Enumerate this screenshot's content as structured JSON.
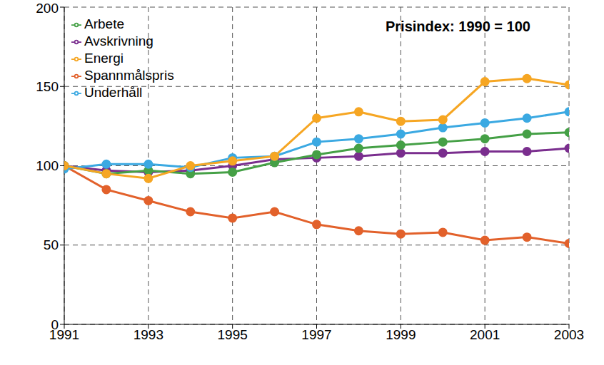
{
  "chart_data": {
    "type": "line",
    "title": "Prisindex: 1990 = 100",
    "x": [
      1991,
      1992,
      1993,
      1994,
      1995,
      1996,
      1997,
      1998,
      1999,
      2000,
      2001,
      2002,
      2003
    ],
    "series": [
      {
        "name": "Spannmålspris",
        "color": "#e2612b",
        "values": [
          100,
          85,
          78,
          71,
          67,
          71,
          63,
          59,
          57,
          58,
          53,
          55,
          51
        ]
      },
      {
        "name": "Avskrivning",
        "color": "#7a2e8e",
        "values": [
          100,
          97,
          96,
          97,
          100,
          104,
          105,
          106,
          108,
          108,
          109,
          109,
          111
        ]
      },
      {
        "name": "Arbete",
        "color": "#45a046",
        "values": [
          100,
          95,
          97,
          95,
          96,
          102,
          107,
          111,
          113,
          115,
          117,
          120,
          121
        ]
      },
      {
        "name": "Underhåll",
        "color": "#3ba9e2",
        "values": [
          98,
          101,
          101,
          99,
          105,
          106,
          115,
          117,
          120,
          124,
          127,
          130,
          134
        ]
      },
      {
        "name": "Energi",
        "color": "#f6a623",
        "values": [
          100,
          95,
          92,
          100,
          103,
          106,
          130,
          134,
          128,
          129,
          153,
          155,
          151
        ]
      }
    ],
    "xlim": [
      1991,
      2003
    ],
    "xticks": [
      1991,
      1993,
      1995,
      1997,
      1999,
      2001,
      2003
    ],
    "ylim": [
      0,
      200
    ],
    "yticks": [
      0,
      50,
      100,
      150,
      200
    ],
    "grid": true,
    "legend": "upper left",
    "marker": "circle"
  }
}
